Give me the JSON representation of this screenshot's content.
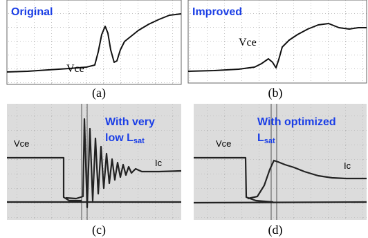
{
  "panels": [
    {
      "title": "Original",
      "trace_label": "Vce",
      "caption": "(a)"
    },
    {
      "title": "Improved",
      "trace_label": "Vce",
      "caption": "(b)"
    },
    {
      "title_lines": [
        "With very",
        "low L"
      ],
      "title_subscript": "sat",
      "trace_labels": [
        "Vce",
        "Ic"
      ],
      "caption": "(c)"
    },
    {
      "title_lines": [
        "With optimized",
        "L"
      ],
      "title_subscript": "sat",
      "trace_labels": [
        "Vce",
        "Ic"
      ],
      "caption": "(d)"
    }
  ]
}
